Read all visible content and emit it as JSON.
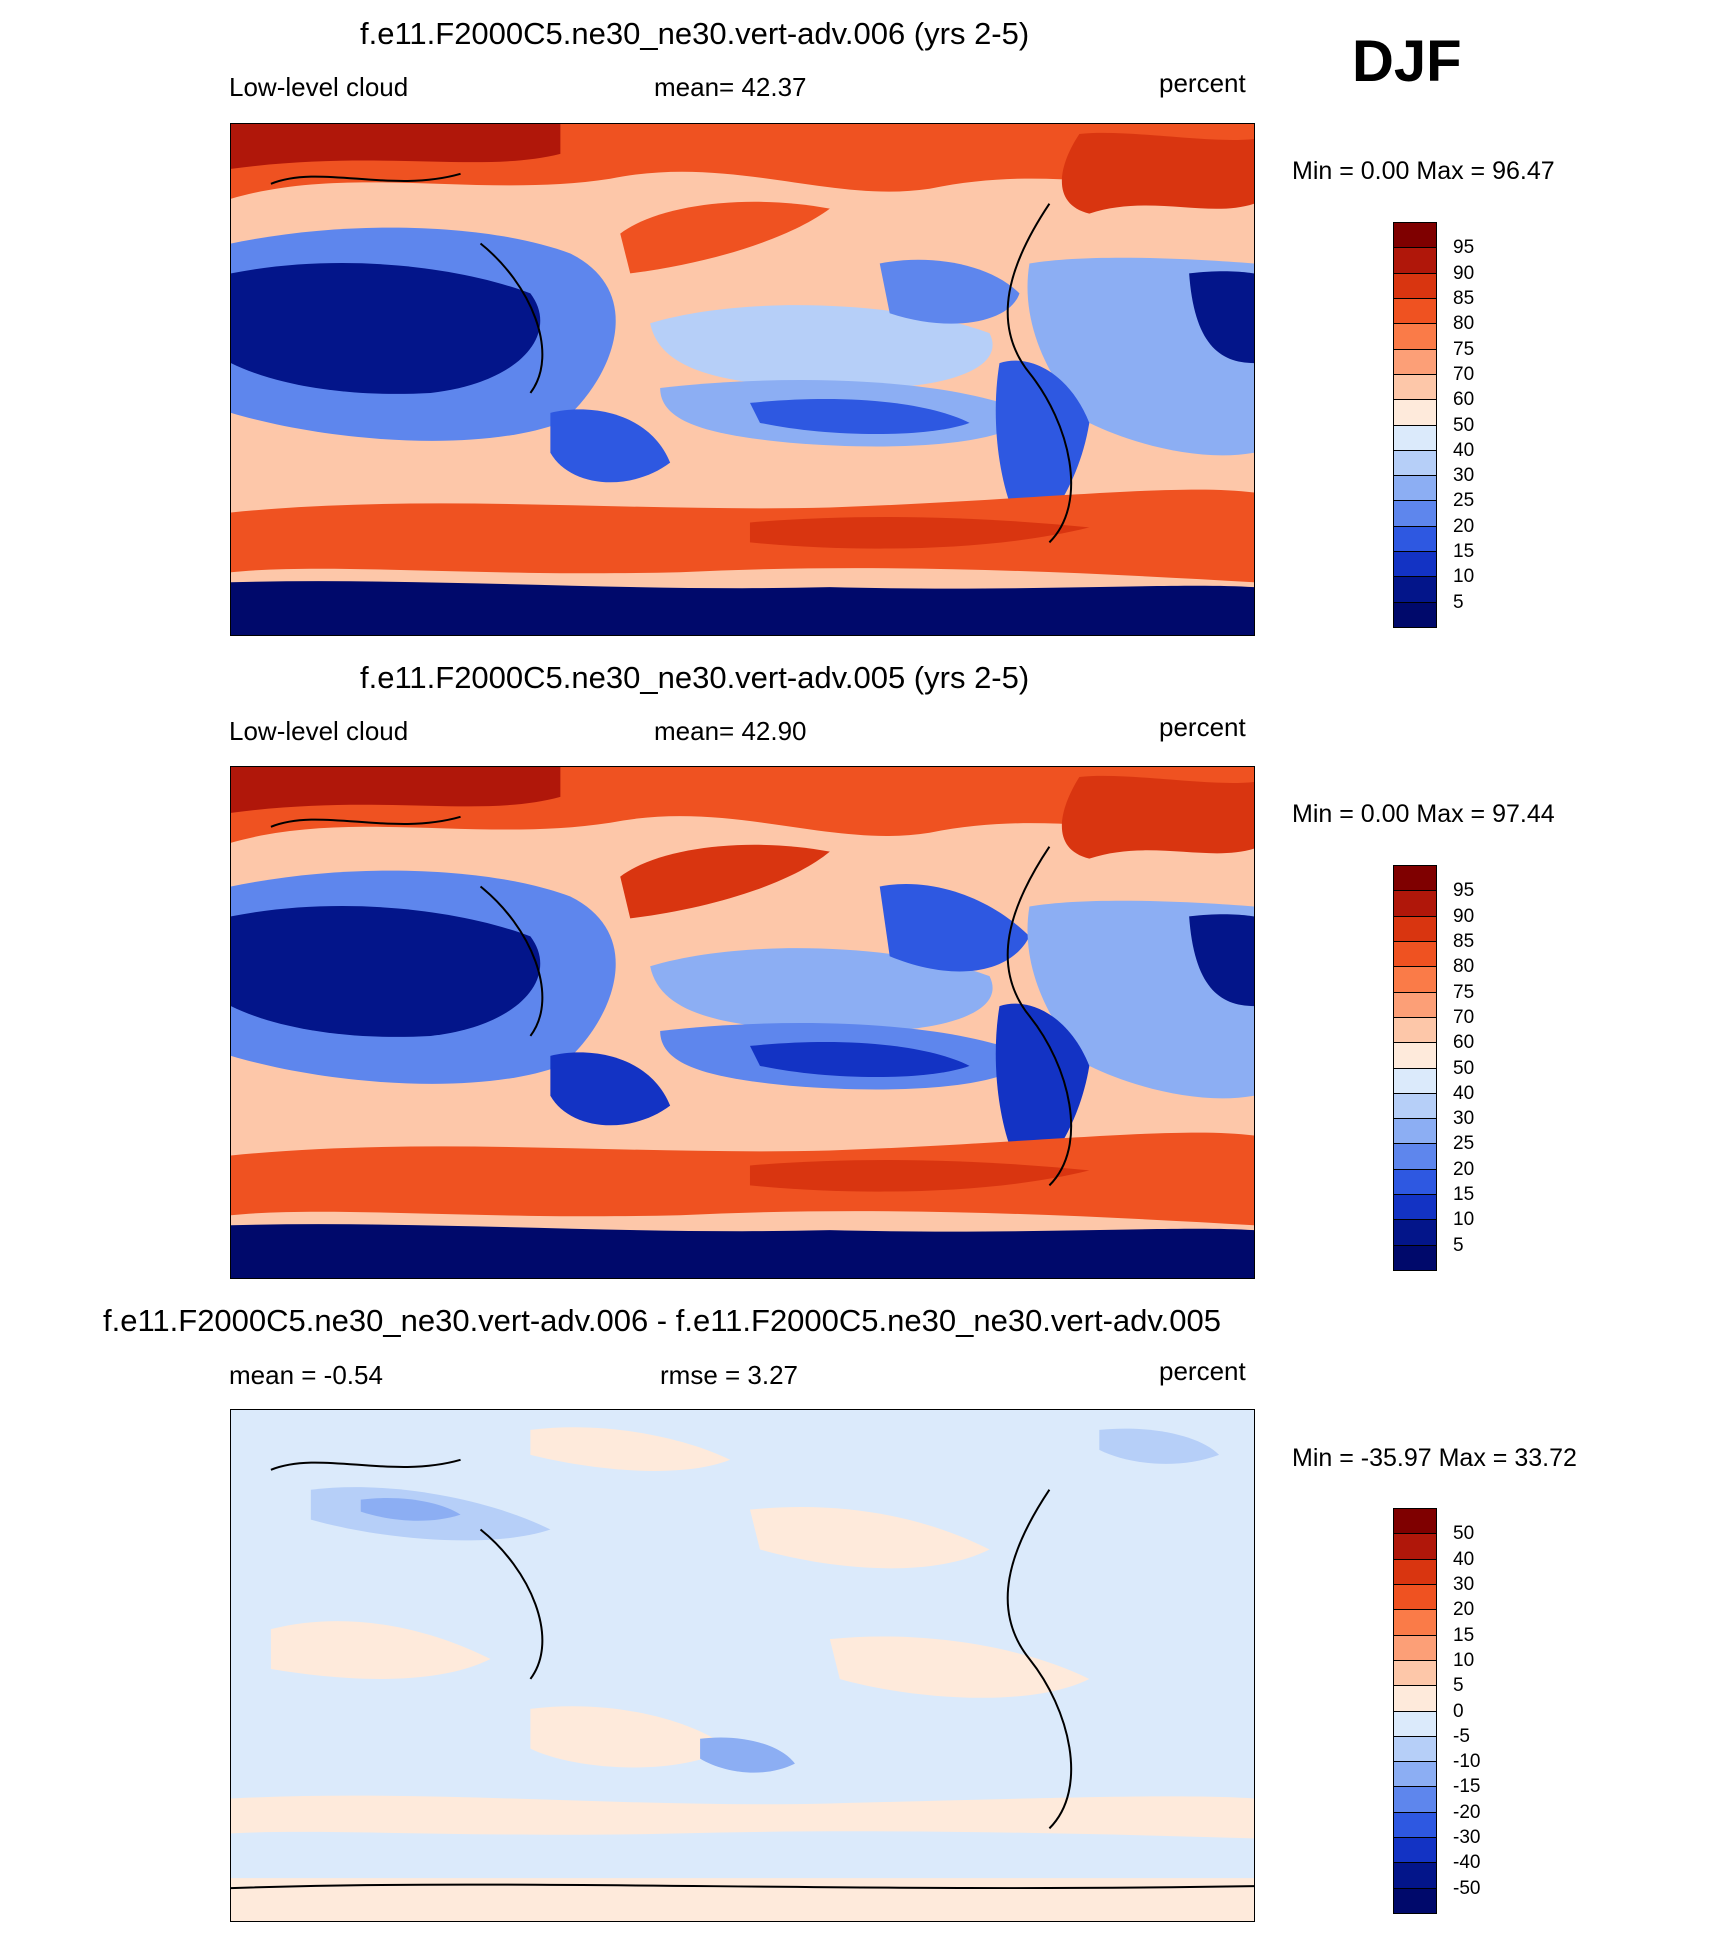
{
  "season": "DJF",
  "panels": [
    {
      "title": "f.e11.F2000C5.ne30_ne30.vert-adv.006 (yrs 2-5)",
      "left_label": "Low-level cloud",
      "center_label": "mean=  42.37",
      "right_label": "percent",
      "minmax": "Min =   0.00 Max =  96.47",
      "map_name": "low-level-cloud-map-006",
      "legend": {
        "labels": [
          "95",
          "90",
          "85",
          "80",
          "75",
          "70",
          "60",
          "50",
          "40",
          "30",
          "25",
          "20",
          "15",
          "10",
          "5"
        ],
        "colors": [
          "#7f0000",
          "#b0170a",
          "#d93510",
          "#ef5221",
          "#fa7b48",
          "#fc9f77",
          "#fdc7a9",
          "#feeadb",
          "#dbeafb",
          "#b6cff8",
          "#8caef3",
          "#5e86ed",
          "#2e58e1",
          "#1333c4",
          "#03158a",
          "#00096b"
        ]
      }
    },
    {
      "title": "f.e11.F2000C5.ne30_ne30.vert-adv.005 (yrs 2-5)",
      "left_label": "Low-level cloud",
      "center_label": "mean=  42.90",
      "right_label": "percent",
      "minmax": "Min =   0.00 Max =  97.44",
      "map_name": "low-level-cloud-map-005",
      "legend": {
        "labels": [
          "95",
          "90",
          "85",
          "80",
          "75",
          "70",
          "60",
          "50",
          "40",
          "30",
          "25",
          "20",
          "15",
          "10",
          "5"
        ],
        "colors": [
          "#7f0000",
          "#b0170a",
          "#d93510",
          "#ef5221",
          "#fa7b48",
          "#fc9f77",
          "#fdc7a9",
          "#feeadb",
          "#dbeafb",
          "#b6cff8",
          "#8caef3",
          "#5e86ed",
          "#2e58e1",
          "#1333c4",
          "#03158a",
          "#00096b"
        ]
      }
    },
    {
      "title": "f.e11.F2000C5.ne30_ne30.vert-adv.006 - f.e11.F2000C5.ne30_ne30.vert-adv.005",
      "left_label": "mean =  -0.54",
      "center_label": "rmse =   3.27",
      "right_label": "percent",
      "minmax": "Min = -35.97 Max =  33.72",
      "map_name": "low-level-cloud-difference-map",
      "legend": {
        "labels": [
          "50",
          "40",
          "30",
          "20",
          "15",
          "10",
          "5",
          "0",
          "-5",
          "-10",
          "-15",
          "-20",
          "-30",
          "-40",
          "-50"
        ],
        "colors": [
          "#7f0000",
          "#b0170a",
          "#d93510",
          "#ef5221",
          "#fa7b48",
          "#fc9f77",
          "#fdc7a9",
          "#feeadb",
          "#dbeafb",
          "#b6cff8",
          "#8caef3",
          "#5e86ed",
          "#2e58e1",
          "#1333c4",
          "#03158a",
          "#00096b"
        ]
      }
    }
  ]
}
